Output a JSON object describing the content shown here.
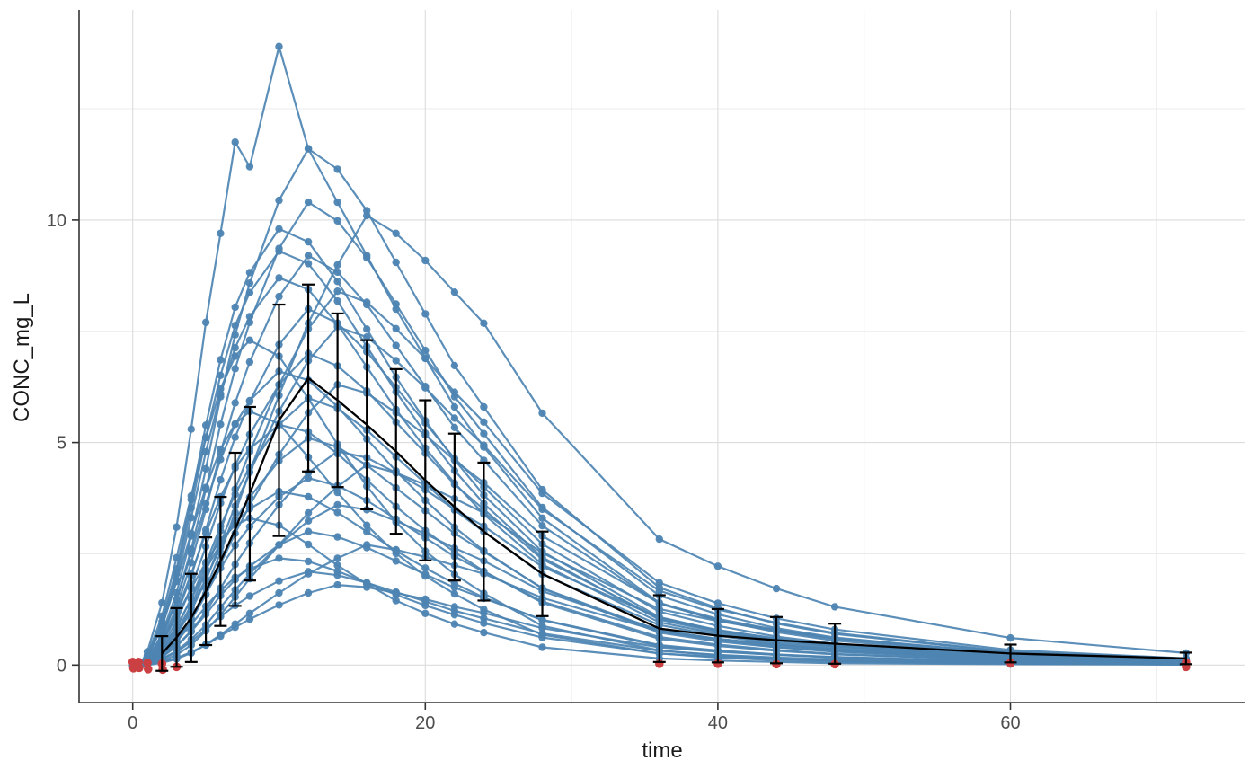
{
  "chart_data": {
    "type": "line",
    "title": "",
    "xlabel": "time",
    "ylabel": "CONC_mg_L",
    "x_ticks": [
      0,
      20,
      40,
      60
    ],
    "x_minor_ticks": [
      10,
      30,
      50,
      70
    ],
    "y_ticks": [
      0,
      5,
      10
    ],
    "y_minor_ticks": [
      2.5,
      7.5,
      12.5
    ],
    "xlim": [
      -3.6,
      76
    ],
    "ylim": [
      -0.85,
      14.72
    ],
    "grid": true,
    "legend_position": "none",
    "times": [
      0,
      0.5,
      1,
      2,
      3,
      4,
      5,
      6,
      7,
      8,
      10,
      12,
      14,
      16,
      18,
      20,
      22,
      24,
      28,
      36,
      40,
      44,
      48,
      60,
      72
    ],
    "individuals": [
      [
        0,
        0,
        0.3,
        1.4,
        3.1,
        5.3,
        7.7,
        9.7,
        11.75,
        11.2,
        13.9,
        11.6,
        10.4,
        9.2,
        8.0,
        6.9,
        5.8,
        4.9,
        3.3,
        1.4,
        1.0,
        0.8,
        0.6,
        0.27,
        0.13
      ],
      [
        0,
        0,
        0.12,
        0.7,
        1.62,
        2.9,
        4.41,
        6.03,
        7.42,
        8.58,
        10.44,
        11.6,
        11.14,
        10.21,
        9.05,
        7.89,
        6.73,
        5.8,
        3.94,
        1.74,
        1.28,
        0.93,
        0.7,
        0.29,
        0.14
      ],
      [
        0,
        0,
        0.2,
        0.98,
        2.16,
        3.72,
        5.39,
        6.86,
        8.04,
        8.82,
        9.8,
        9.51,
        8.62,
        7.55,
        6.47,
        5.49,
        4.61,
        3.82,
        2.55,
        1.08,
        0.78,
        0.59,
        0.44,
        0.2,
        0.1
      ],
      [
        0,
        0,
        0.1,
        0.62,
        1.46,
        2.6,
        3.95,
        5.41,
        6.66,
        7.7,
        9.36,
        10.4,
        9.98,
        9.15,
        8.11,
        7.07,
        6.03,
        5.2,
        3.54,
        1.56,
        1.14,
        0.83,
        0.62,
        0.26,
        0.12
      ],
      [
        0,
        0,
        0,
        0.2,
        0.51,
        1.01,
        1.72,
        2.53,
        3.43,
        4.34,
        6.06,
        7.68,
        8.99,
        10.1,
        9.7,
        9.09,
        8.38,
        7.68,
        5.66,
        2.83,
        2.22,
        1.72,
        1.31,
        0.61,
        0.27
      ],
      [
        0,
        0,
        0.19,
        0.93,
        2.05,
        3.53,
        5.12,
        6.51,
        7.63,
        8.37,
        9.3,
        9.02,
        8.18,
        7.16,
        6.14,
        5.21,
        4.37,
        3.63,
        2.42,
        1.02,
        0.74,
        0.56,
        0.42,
        0.19,
        0.09
      ],
      [
        0,
        0,
        0.09,
        0.55,
        1.29,
        2.3,
        3.5,
        4.78,
        5.89,
        6.81,
        8.28,
        9.2,
        8.83,
        8.1,
        7.18,
        6.26,
        5.34,
        4.6,
        3.13,
        1.38,
        1.01,
        0.74,
        0.55,
        0.23,
        0.11
      ],
      [
        0,
        0,
        0.08,
        0.34,
        0.76,
        1.34,
        2.1,
        3.02,
        3.95,
        4.79,
        6.3,
        7.56,
        8.4,
        8.15,
        7.56,
        6.89,
        6.13,
        5.46,
        3.86,
        1.85,
        1.39,
        1.05,
        0.8,
        0.34,
        0.15
      ],
      [
        0,
        0,
        0.17,
        0.87,
        1.91,
        3.31,
        4.79,
        6.09,
        7.13,
        7.83,
        8.7,
        8.44,
        7.66,
        6.7,
        5.74,
        4.87,
        4.09,
        3.39,
        2.26,
        0.96,
        0.7,
        0.52,
        0.39,
        0.17,
        0.09
      ],
      [
        0,
        0,
        0.08,
        0.48,
        1.12,
        2.0,
        3.04,
        4.16,
        5.12,
        5.92,
        7.2,
        8.0,
        7.68,
        7.04,
        6.24,
        5.44,
        4.64,
        4.0,
        2.72,
        1.2,
        0.88,
        0.64,
        0.48,
        0.2,
        0.1
      ],
      [
        0,
        0,
        0.08,
        0.3,
        0.68,
        1.22,
        1.9,
        2.74,
        3.57,
        4.33,
        5.7,
        6.84,
        7.6,
        7.37,
        6.84,
        6.23,
        5.55,
        4.94,
        3.5,
        1.67,
        1.25,
        0.95,
        0.72,
        0.3,
        0.14
      ],
      [
        0,
        0.07,
        0.22,
        1.1,
        2.41,
        3.8,
        5.11,
        6.21,
        6.94,
        7.3,
        6.94,
        5.99,
        4.96,
        4.02,
        3.21,
        2.56,
        2.04,
        1.61,
        0.88,
        0.33,
        0.22,
        0.15,
        0.09,
        0.04,
        0.01
      ],
      [
        0,
        0,
        0.07,
        0.42,
        0.98,
        1.75,
        2.66,
        3.64,
        4.48,
        5.18,
        6.3,
        7.0,
        6.72,
        6.16,
        5.46,
        4.76,
        4.06,
        3.5,
        2.38,
        1.05,
        0.77,
        0.56,
        0.42,
        0.18,
        0.08
      ],
      [
        0,
        0,
        0.13,
        0.66,
        1.45,
        2.51,
        3.63,
        4.62,
        5.41,
        5.94,
        6.6,
        6.4,
        5.81,
        5.08,
        4.36,
        3.7,
        3.1,
        2.57,
        1.72,
        0.73,
        0.53,
        0.4,
        0.3,
        0.13,
        0.07
      ],
      [
        0,
        0,
        0.06,
        0.25,
        0.57,
        1.01,
        1.58,
        2.27,
        2.96,
        3.59,
        4.73,
        5.67,
        6.3,
        6.11,
        5.67,
        5.17,
        4.6,
        4.1,
        2.9,
        1.39,
        1.04,
        0.79,
        0.6,
        0.25,
        0.11
      ],
      [
        0,
        0,
        0.06,
        0.36,
        0.84,
        1.5,
        2.28,
        3.12,
        3.84,
        4.44,
        5.4,
        6.0,
        5.76,
        5.28,
        4.68,
        4.08,
        3.48,
        3.0,
        2.04,
        0.9,
        0.66,
        0.48,
        0.36,
        0.15,
        0.07
      ],
      [
        0,
        0.06,
        0.17,
        0.86,
        1.88,
        2.96,
        3.99,
        4.85,
        5.42,
        5.7,
        5.42,
        4.67,
        3.88,
        3.14,
        2.51,
        2.0,
        1.6,
        1.25,
        0.68,
        0.26,
        0.17,
        0.11,
        0.07,
        0.03,
        0.01
      ],
      [
        0,
        0,
        0.11,
        0.54,
        1.19,
        2.05,
        2.97,
        3.78,
        4.43,
        4.86,
        5.4,
        5.24,
        4.75,
        4.16,
        3.56,
        3.02,
        2.54,
        2.11,
        1.4,
        0.59,
        0.43,
        0.32,
        0.24,
        0.11,
        0.05
      ],
      [
        0,
        0,
        0.05,
        0.31,
        0.71,
        1.28,
        1.94,
        2.65,
        3.26,
        3.77,
        4.59,
        5.1,
        4.9,
        4.49,
        3.98,
        3.47,
        2.96,
        2.55,
        1.73,
        0.77,
        0.56,
        0.41,
        0.31,
        0.13,
        0.06
      ],
      [
        0,
        0,
        0.05,
        0.19,
        0.43,
        0.77,
        1.2,
        1.73,
        2.26,
        2.74,
        3.6,
        4.32,
        4.8,
        4.66,
        4.32,
        3.94,
        3.5,
        3.12,
        2.21,
        1.06,
        0.79,
        0.6,
        0.46,
        0.19,
        0.09
      ],
      [
        0,
        0,
        0,
        0.09,
        0.23,
        0.45,
        0.77,
        1.13,
        1.53,
        1.94,
        2.7,
        3.42,
        4.01,
        4.5,
        4.32,
        4.05,
        3.74,
        3.42,
        2.52,
        1.26,
        0.99,
        0.77,
        0.59,
        0.27,
        0.12
      ],
      [
        0,
        0,
        0.04,
        0.25,
        0.59,
        1.05,
        1.6,
        2.18,
        2.69,
        3.11,
        3.78,
        4.2,
        4.03,
        3.7,
        3.28,
        2.86,
        2.44,
        2.1,
        1.43,
        0.63,
        0.46,
        0.34,
        0.25,
        0.11,
        0.05
      ],
      [
        0,
        0,
        0.08,
        0.39,
        0.86,
        1.48,
        2.15,
        2.73,
        3.2,
        3.51,
        3.9,
        3.78,
        3.43,
        3.0,
        2.57,
        2.18,
        1.83,
        1.52,
        1.01,
        0.43,
        0.31,
        0.23,
        0.18,
        0.08,
        0.04
      ],
      [
        0,
        0,
        0.04,
        0.14,
        0.32,
        0.58,
        0.9,
        1.3,
        1.69,
        2.05,
        2.7,
        3.24,
        3.6,
        3.49,
        3.24,
        2.95,
        2.63,
        2.34,
        1.66,
        0.79,
        0.59,
        0.45,
        0.34,
        0.14,
        0.06
      ],
      [
        0,
        0.03,
        0.1,
        0.5,
        1.09,
        1.72,
        2.31,
        2.81,
        3.14,
        3.3,
        3.14,
        2.71,
        2.24,
        1.82,
        1.45,
        1.16,
        0.92,
        0.73,
        0.4,
        0.15,
        0.1,
        0.07,
        0.04,
        0.02,
        0.01
      ],
      [
        0,
        0,
        0.03,
        0.18,
        0.42,
        0.75,
        1.14,
        1.56,
        1.92,
        2.22,
        2.7,
        3.0,
        2.88,
        2.64,
        2.34,
        2.04,
        1.74,
        1.5,
        1.02,
        0.45,
        0.33,
        0.24,
        0.18,
        0.08,
        0.04
      ],
      [
        0,
        0,
        0,
        0.05,
        0.14,
        0.27,
        0.46,
        0.68,
        0.92,
        1.16,
        1.62,
        2.05,
        2.4,
        2.7,
        2.59,
        2.43,
        2.24,
        2.05,
        1.51,
        0.76,
        0.59,
        0.46,
        0.35,
        0.16,
        0.07
      ],
      [
        0,
        0,
        0.05,
        0.24,
        0.53,
        0.91,
        1.32,
        1.68,
        1.97,
        2.16,
        2.4,
        2.33,
        2.11,
        1.85,
        1.58,
        1.34,
        1.13,
        0.94,
        0.62,
        0.26,
        0.19,
        0.14,
        0.11,
        0.05,
        0.02
      ],
      [
        0,
        0,
        0.02,
        0.13,
        0.29,
        0.53,
        0.8,
        1.09,
        1.34,
        1.55,
        1.89,
        2.1,
        2.02,
        1.85,
        1.64,
        1.43,
        1.22,
        1.05,
        0.71,
        0.32,
        0.23,
        0.17,
        0.13,
        0.05,
        0.03
      ],
      [
        0,
        0,
        0.02,
        0.07,
        0.16,
        0.29,
        0.45,
        0.65,
        0.85,
        1.03,
        1.35,
        1.62,
        1.8,
        1.75,
        1.62,
        1.48,
        1.31,
        1.17,
        0.83,
        0.4,
        0.3,
        0.23,
        0.17,
        0.07,
        0.03
      ]
    ],
    "summary": {
      "statistic": "mean ± SD",
      "times": [
        2,
        3,
        4,
        5,
        6,
        7,
        8,
        10,
        12,
        14,
        16,
        18,
        20,
        22,
        24,
        28,
        36,
        40,
        44,
        48,
        60,
        72
      ],
      "mean": [
        0.26,
        0.62,
        1.06,
        1.66,
        2.33,
        3.05,
        3.85,
        5.5,
        6.45,
        5.95,
        5.4,
        4.8,
        4.15,
        3.55,
        3.0,
        2.05,
        0.82,
        0.66,
        0.56,
        0.48,
        0.26,
        0.15
      ],
      "sd": [
        0.39,
        0.66,
        0.99,
        1.21,
        1.45,
        1.72,
        1.95,
        2.6,
        2.1,
        1.95,
        1.9,
        1.85,
        1.8,
        1.65,
        1.55,
        0.95,
        0.75,
        0.6,
        0.52,
        0.45,
        0.2,
        0.13
      ]
    },
    "flagged_points": [
      [
        0,
        0.07
      ],
      [
        0.05,
        -0.07
      ],
      [
        0.4,
        0.07
      ],
      [
        0.45,
        -0.06
      ],
      [
        1,
        0.05
      ],
      [
        1.05,
        -0.09
      ],
      [
        2,
        0.03
      ],
      [
        2.05,
        -0.1
      ],
      [
        3,
        -0.04
      ],
      [
        36,
        0.03
      ],
      [
        40,
        0.03
      ],
      [
        44,
        0.02
      ],
      [
        48,
        0.02
      ],
      [
        60,
        0.05
      ],
      [
        72,
        0.06
      ],
      [
        72,
        -0.04
      ]
    ],
    "colors": {
      "individual": "#4d84b2",
      "summary": "#000000",
      "flagged": "#cb4042",
      "grid_major": "#dcdcdc",
      "grid_minor": "#ebebeb",
      "axis_line": "#333333",
      "tick_label": "#4d4d4d",
      "panel_background": "#ffffff"
    }
  }
}
